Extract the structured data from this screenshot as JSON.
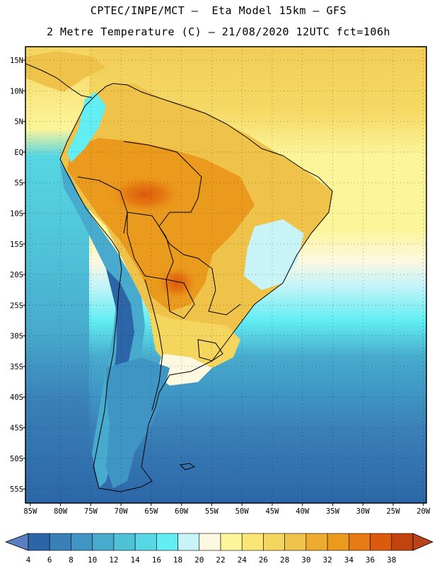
{
  "header": {
    "line1": "CPTEC/INPE/MCT –  Eta Model 15km – GFS",
    "line2": "2 Metre Temperature (C) – 21/08/2020 12UTC fct=106h"
  },
  "map": {
    "lat_labels": [
      "15N",
      "10N",
      "5N",
      "EQ",
      "5S",
      "10S",
      "15S",
      "20S",
      "25S",
      "30S",
      "35S",
      "40S",
      "45S",
      "50S",
      "55S"
    ],
    "lon_labels": [
      "85W",
      "80W",
      "75W",
      "70W",
      "65W",
      "60W",
      "55W",
      "50W",
      "45W",
      "40W",
      "35W",
      "30W",
      "25W",
      "20W"
    ],
    "lat_range": [
      15,
      -57.5
    ],
    "lon_range": [
      -85,
      -20
    ]
  },
  "colorbar": {
    "labels": [
      "4",
      "6",
      "8",
      "10",
      "12",
      "14",
      "16",
      "18",
      "20",
      "22",
      "24",
      "26",
      "28",
      "30",
      "32",
      "34",
      "36",
      "38"
    ],
    "colors": [
      "#2c66a8",
      "#3a80b8",
      "#3f96c4",
      "#48abcd",
      "#4fc2d8",
      "#57d6e3",
      "#62eef2",
      "#c8f4f8",
      "#fdf8e0",
      "#fdf59a",
      "#f9e677",
      "#f4d55e",
      "#efc24a",
      "#edac2f",
      "#ea9a1d",
      "#e67a13",
      "#db5a0b",
      "#c2430e",
      "#a83a10",
      "#5a7fc0"
    ],
    "low_color": "#5a7fc0",
    "high_color": "#b8441c"
  },
  "field_colors": {
    "ocean_north": "#f4d55e",
    "ocean_equator": "#fdf59a",
    "ocean_sub": "#fdf8e0",
    "land_hot": "#ea9a1d",
    "land_warm": "#efc24a",
    "cool_coast": "#48abcd",
    "ocean_south": "#2c66a8"
  }
}
